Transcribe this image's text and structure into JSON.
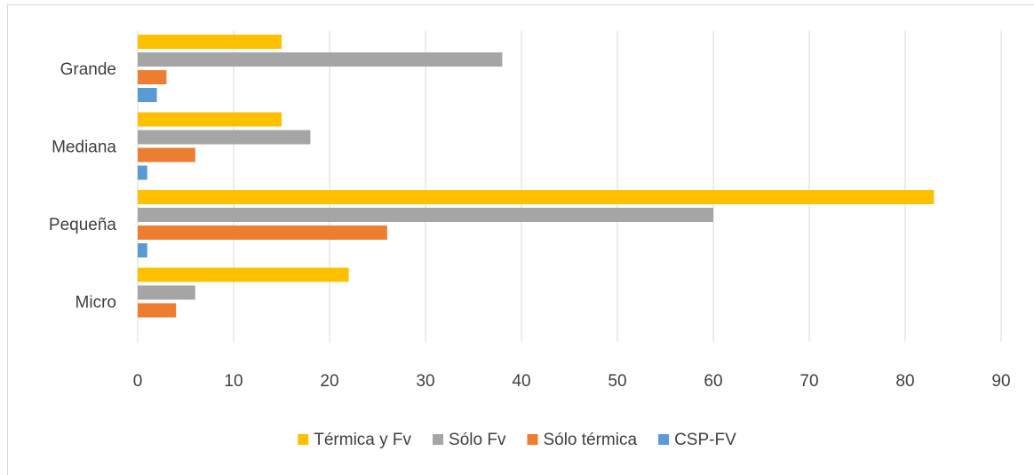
{
  "chart_data": {
    "type": "bar",
    "orientation": "horizontal",
    "categories": [
      "Micro",
      "Pequeña",
      "Mediana",
      "Grande"
    ],
    "series": [
      {
        "name": "Térmica y Fv",
        "color": "#ffc000",
        "values": [
          22,
          83,
          15,
          15
        ]
      },
      {
        "name": "Sólo Fv",
        "color": "#a5a5a5",
        "values": [
          6,
          60,
          18,
          38
        ]
      },
      {
        "name": "Sólo térmica",
        "color": "#ed7d31",
        "values": [
          4,
          26,
          6,
          3
        ]
      },
      {
        "name": "CSP-FV",
        "color": "#5b9bd5",
        "values": [
          0,
          1,
          1,
          2
        ]
      }
    ],
    "xlim": [
      0,
      90
    ],
    "xticks": [
      0,
      10,
      20,
      30,
      40,
      50,
      60,
      70,
      80,
      90
    ],
    "grid": true,
    "legend": "bottom"
  }
}
